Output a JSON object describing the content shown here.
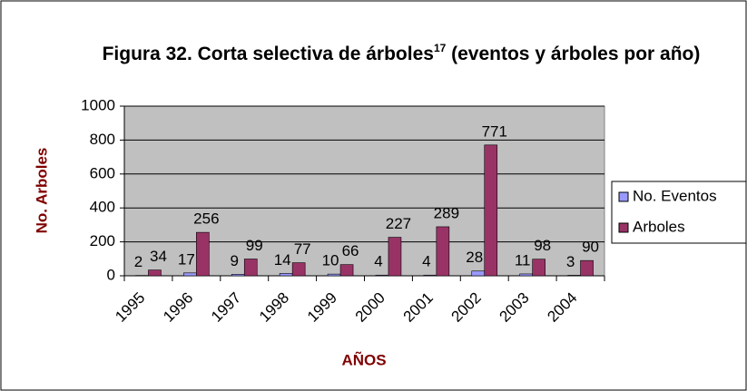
{
  "chart_data": {
    "type": "bar",
    "title": [
      "Figura 32. Corta selectiva de árboles",
      "17",
      " (eventos y árboles por año)"
    ],
    "ylabel": "No. Arboles",
    "xlabel": "AÑOS",
    "categories": [
      "1995",
      "1996",
      "1997",
      "1998",
      "1999",
      "2000",
      "2001",
      "2002",
      "2003",
      "2004"
    ],
    "series": [
      {
        "name": "No. Eventos",
        "color": "#9999ff",
        "values": [
          2,
          17,
          9,
          14,
          10,
          4,
          4,
          28,
          11,
          3
        ]
      },
      {
        "name": "Arboles",
        "color": "#993366",
        "values": [
          34,
          256,
          99,
          77,
          66,
          227,
          289,
          771,
          98,
          90
        ]
      }
    ],
    "ylim": [
      0,
      1000
    ],
    "yticks": [
      0,
      200,
      400,
      600,
      800,
      1000
    ],
    "grid": true
  }
}
